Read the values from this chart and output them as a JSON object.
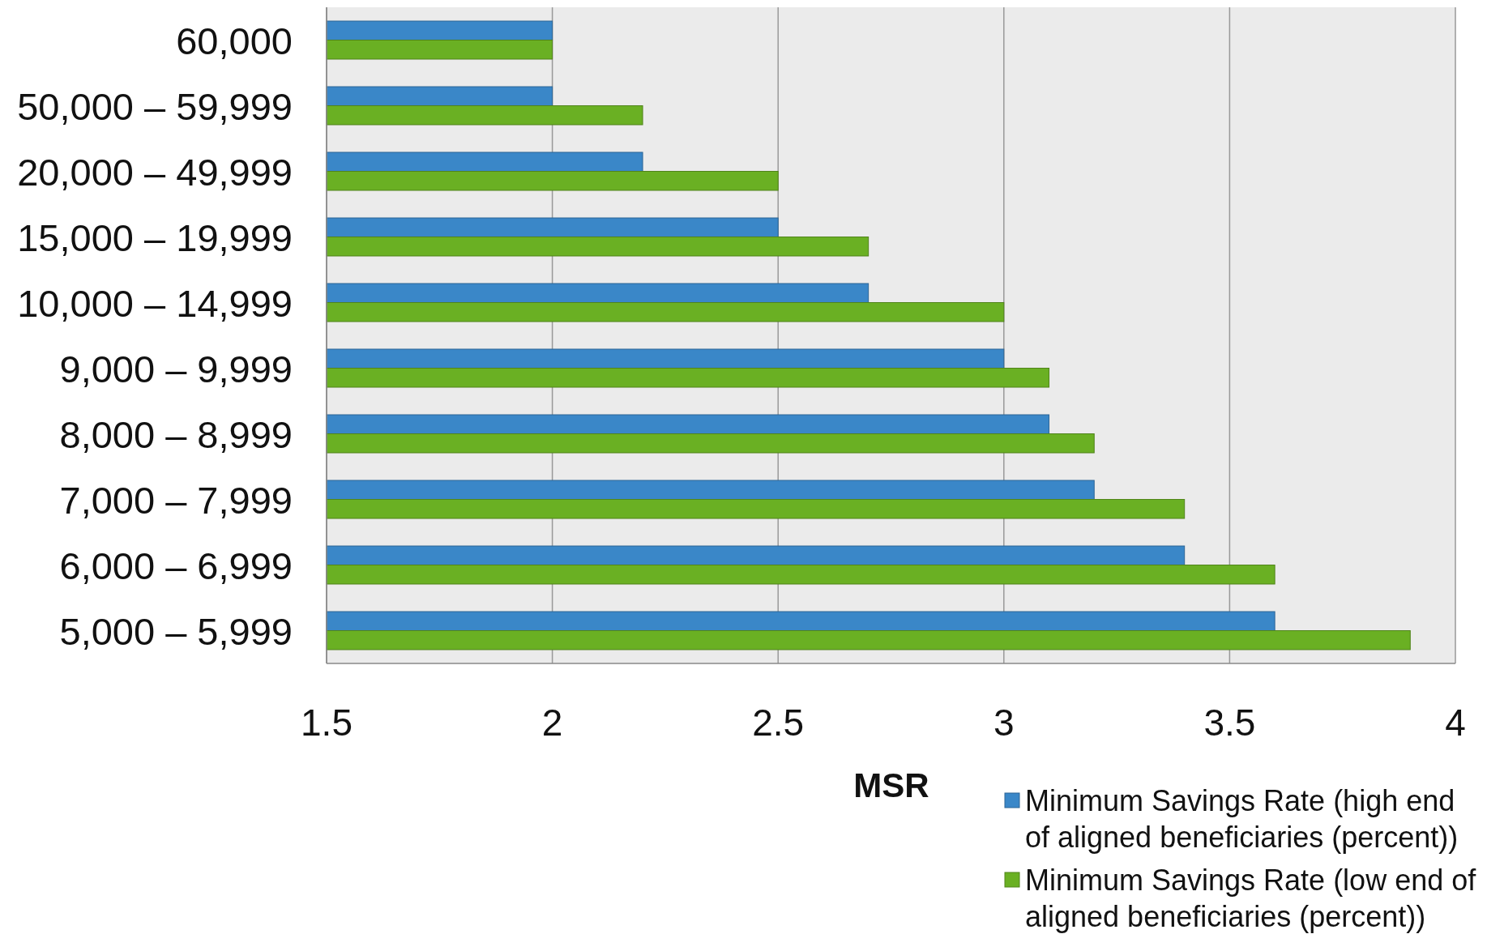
{
  "chart_data": {
    "type": "bar",
    "orientation": "horizontal",
    "xlabel": "MSR",
    "categories": [
      "60,000",
      "50,000 – 59,999",
      "20,000 – 49,999",
      "15,000 – 19,999",
      "10,000 – 14,999",
      "9,000 – 9,999",
      "8,000 – 8,999",
      "7,000 – 7,999",
      "6,000 – 6,999",
      "5,000 – 5,999"
    ],
    "series": [
      {
        "name": "Minimum Savings Rate (high end of aligned beneficiaries (percent))",
        "color": "#3a87c8",
        "values": [
          2,
          2,
          2.2,
          2.5,
          2.7,
          3,
          3.1,
          3.2,
          3.4,
          3.6
        ]
      },
      {
        "name": "Minimum Savings Rate (low end of aligned beneficiaries (percent))",
        "color": "#6ab023",
        "values": [
          2,
          2.2,
          2.5,
          2.7,
          3,
          3.1,
          3.2,
          3.4,
          3.6,
          3.9
        ]
      }
    ],
    "xlim": [
      1.5,
      4
    ],
    "xticks": [
      1.5,
      2,
      2.5,
      3,
      3.5,
      4
    ],
    "grid": "x",
    "legend": "bottom right"
  }
}
